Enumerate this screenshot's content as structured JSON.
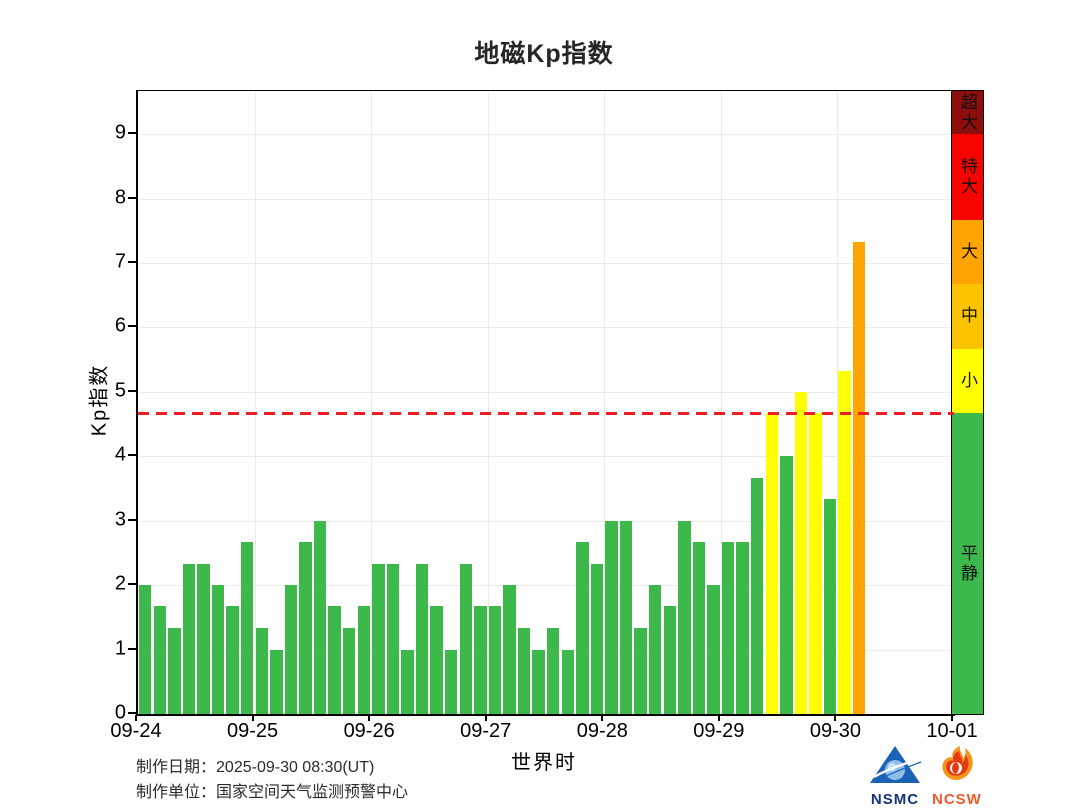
{
  "chart_data": {
    "type": "bar",
    "title": "地磁Kp指数",
    "xlabel": "世界时",
    "ylabel": "Kp指数",
    "ylim": [
      0,
      9.67
    ],
    "yticks": [
      0,
      1,
      2,
      3,
      4,
      5,
      6,
      7,
      8,
      9
    ],
    "xticklabels": [
      "09-24",
      "09-25",
      "09-26",
      "09-27",
      "09-28",
      "09-29",
      "09-30",
      "10-01"
    ],
    "bars_per_day": 8,
    "grid": true,
    "threshold_line": {
      "value": 4.67,
      "color": "#ee1c25",
      "style": "dashed"
    },
    "days": [
      {
        "date": "09-24",
        "values": [
          2.0,
          1.67,
          1.33,
          2.33,
          2.33,
          2.0,
          1.67,
          2.67
        ]
      },
      {
        "date": "09-25",
        "values": [
          1.33,
          1.0,
          2.0,
          2.67,
          3.0,
          1.67,
          1.33,
          1.67
        ]
      },
      {
        "date": "09-26",
        "values": [
          2.33,
          2.33,
          1.0,
          2.33,
          1.67,
          1.0,
          2.33,
          1.67
        ]
      },
      {
        "date": "09-27",
        "values": [
          1.67,
          2.0,
          1.33,
          1.0,
          1.33,
          1.0,
          2.67,
          2.33
        ]
      },
      {
        "date": "09-28",
        "values": [
          3.0,
          3.0,
          1.33,
          2.0,
          1.67,
          3.0,
          2.67,
          2.0
        ]
      },
      {
        "date": "09-29",
        "values": [
          2.67,
          2.67,
          3.67,
          4.67,
          4.0,
          5.0,
          4.67,
          3.33
        ]
      },
      {
        "date": "09-30",
        "values": [
          5.33,
          7.33
        ]
      }
    ],
    "color_scale": [
      {
        "label": "超大",
        "min": 9.0,
        "max": 9.67,
        "color": "#8e0d0d"
      },
      {
        "label": "特大",
        "min": 7.67,
        "max": 9.0,
        "color": "#f80400"
      },
      {
        "label": "大",
        "min": 6.67,
        "max": 7.67,
        "color": "#ffa400"
      },
      {
        "label": "中",
        "min": 5.67,
        "max": 6.67,
        "color": "#fcc400"
      },
      {
        "label": "小",
        "min": 4.67,
        "max": 5.67,
        "color": "#ffff00"
      },
      {
        "label": "平静",
        "min": 0,
        "max": 4.67,
        "color": "#3cb94a"
      }
    ]
  },
  "footer": {
    "made_date_label": "制作日期：",
    "made_date": "2025-09-30 08:30(UT)",
    "org_label": "制作单位：",
    "org": "国家空间天气监测预警中心"
  },
  "logos": {
    "nsmc": "NSMC",
    "ncsw": "NCSW"
  }
}
